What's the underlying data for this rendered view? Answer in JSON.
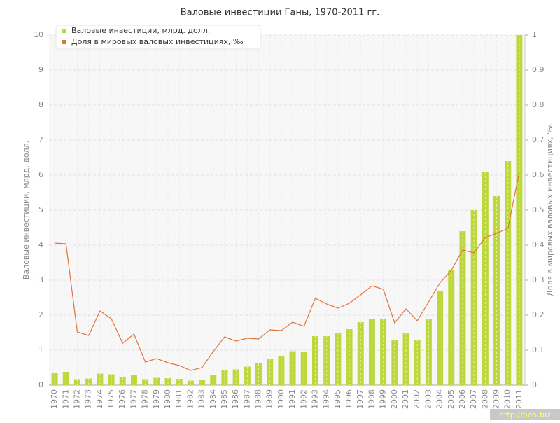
{
  "chart_data": {
    "type": "bar-line",
    "title": "Валовые инвестиции Ганы, 1970-2011 гг.",
    "y_label": "Валовые инвестиции, млрд. долл.",
    "y2_label": "Доля в мировых валовых инвестициях, ‰",
    "watermark": "http://be5.biz",
    "categories": [
      "1970",
      "1971",
      "1972",
      "1973",
      "1974",
      "1975",
      "1976",
      "1977",
      "1978",
      "1979",
      "1980",
      "1981",
      "1982",
      "1983",
      "1984",
      "1985",
      "1986",
      "1987",
      "1988",
      "1989",
      "1990",
      "1991",
      "1992",
      "1993",
      "1994",
      "1995",
      "1996",
      "1997",
      "1998",
      "1999",
      "2000",
      "2001",
      "2002",
      "2003",
      "2004",
      "2005",
      "2006",
      "2007",
      "2008",
      "2009",
      "2010",
      "2011"
    ],
    "series": [
      {
        "name": "Валовые инвестиции, млрд. долл.",
        "type": "bar",
        "color": "#bcd83c",
        "values": [
          0.35,
          0.38,
          0.17,
          0.19,
          0.33,
          0.31,
          0.22,
          0.3,
          0.17,
          0.21,
          0.2,
          0.18,
          0.13,
          0.15,
          0.29,
          0.43,
          0.45,
          0.53,
          0.62,
          0.76,
          0.83,
          0.97,
          0.95,
          1.4,
          1.4,
          1.5,
          1.6,
          1.8,
          1.9,
          1.9,
          1.3,
          1.5,
          1.3,
          1.9,
          2.7,
          3.3,
          4.4,
          5.0,
          6.1,
          5.4,
          6.4,
          10
        ]
      },
      {
        "name": "Доля в мировых валовых инвестициях, ‰",
        "type": "line",
        "axis": "y2",
        "color": "#e0743c",
        "values": [
          0.406,
          0.404,
          0.152,
          0.142,
          0.212,
          0.19,
          0.12,
          0.146,
          0.066,
          0.076,
          0.064,
          0.056,
          0.042,
          0.05,
          0.096,
          0.138,
          0.126,
          0.134,
          0.132,
          0.158,
          0.156,
          0.18,
          0.168,
          0.248,
          0.232,
          0.22,
          0.234,
          0.258,
          0.284,
          0.274,
          0.178,
          0.218,
          0.184,
          0.238,
          0.292,
          0.328,
          0.386,
          0.378,
          0.422,
          0.434,
          0.448,
          0.608
        ]
      }
    ],
    "ylim": [
      0,
      10
    ],
    "yticks": [
      0,
      1,
      2,
      3,
      4,
      5,
      6,
      7,
      8,
      9,
      10
    ],
    "y2lim": [
      0,
      1
    ],
    "y2ticks": [
      0,
      0.1,
      0.2,
      0.3,
      0.4,
      0.5,
      0.6,
      0.7,
      0.8,
      0.9,
      1
    ],
    "grid": true,
    "legend": "top-left"
  }
}
